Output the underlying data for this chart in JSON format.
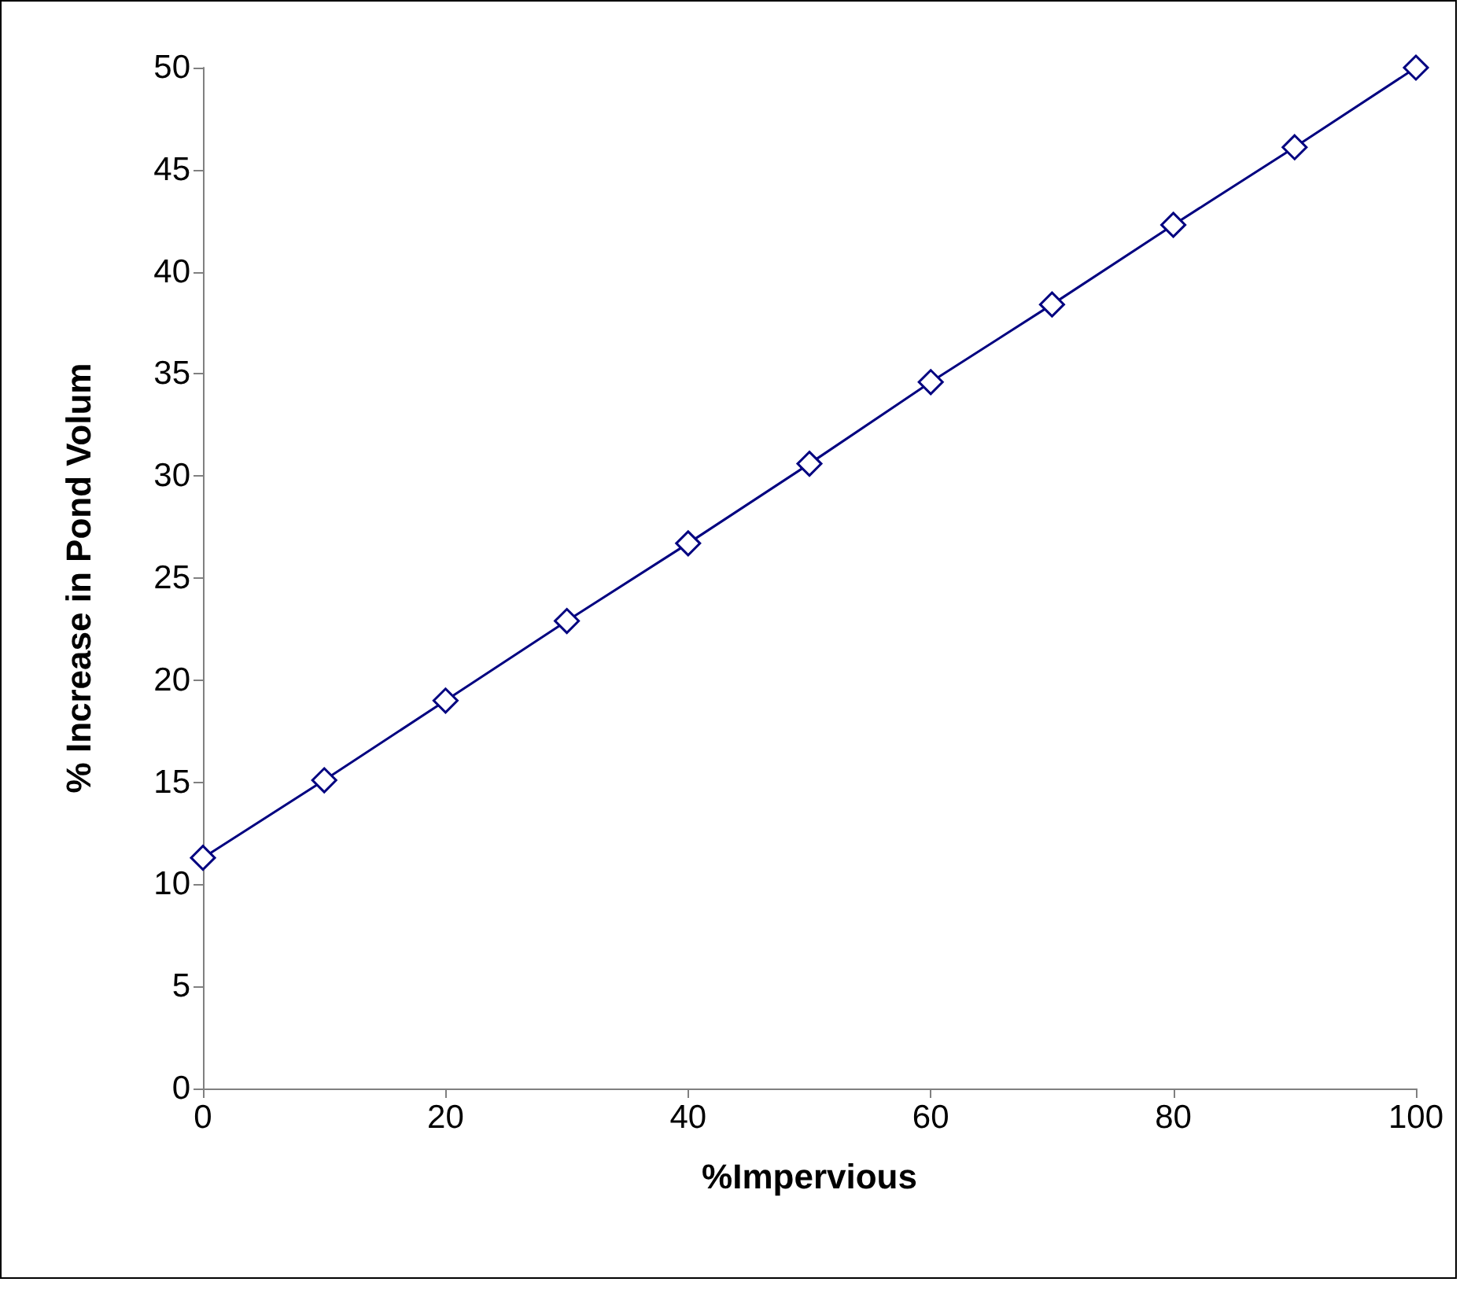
{
  "chart_data": {
    "type": "line",
    "xlabel": "%Impervious",
    "ylabel": "% Increase in Pond Volum",
    "x": [
      0,
      10,
      20,
      30,
      40,
      50,
      60,
      70,
      80,
      90,
      100
    ],
    "series": [
      {
        "color": "#000080",
        "values": [
          11.3,
          15.1,
          19.0,
          22.9,
          26.7,
          30.6,
          34.6,
          38.4,
          42.3,
          46.1,
          50.0
        ]
      }
    ],
    "xlim": [
      0,
      100
    ],
    "xticks": [
      0,
      20,
      40,
      60,
      80,
      100
    ],
    "ylim": [
      0,
      50
    ],
    "yticks": [
      0,
      5,
      10,
      15,
      20,
      25,
      30,
      35,
      40,
      45,
      50
    ],
    "marker": "diamond",
    "line_style": "solid"
  }
}
